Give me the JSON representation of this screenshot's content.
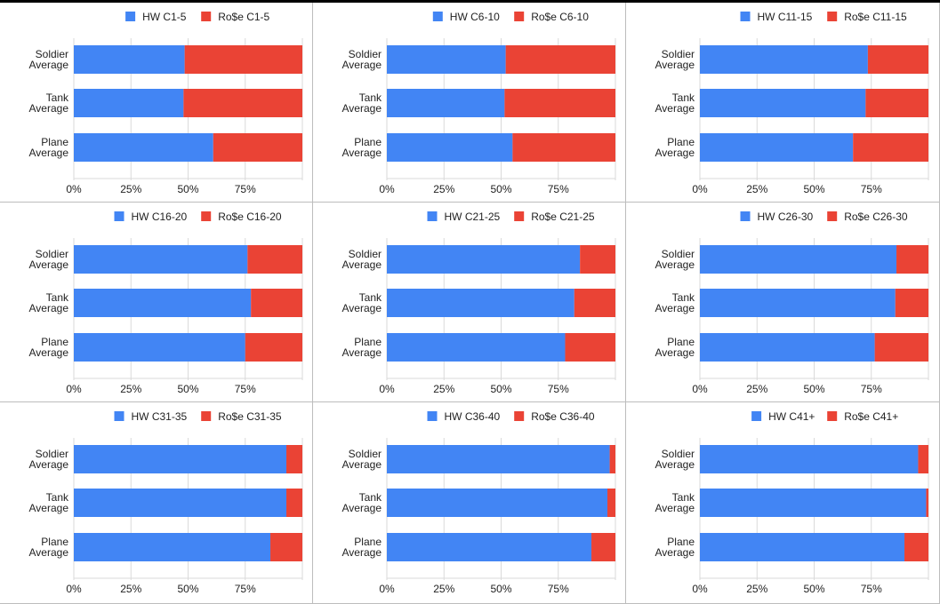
{
  "colors": {
    "hw": "#4285f4",
    "rose": "#ea4335",
    "grid": "#dadada",
    "axis": "#333333"
  },
  "category_lines": [
    [
      "Soldier",
      "Average"
    ],
    [
      "Tank",
      "Average"
    ],
    [
      "Plane",
      "Average"
    ]
  ],
  "chart_data": [
    {
      "type": "bar",
      "orientation": "horizontal",
      "stacked": "percent",
      "legend_position": "top",
      "categories": [
        "Soldier Average",
        "Tank Average",
        "Plane Average"
      ],
      "x_ticks": [
        "0%",
        "25%",
        "50%",
        "75%"
      ],
      "series": [
        {
          "name": "HW C1-5",
          "values": [
            48.5,
            48,
            61
          ]
        },
        {
          "name": "Ro$e C1-5",
          "values": [
            51.5,
            52,
            39
          ]
        }
      ]
    },
    {
      "type": "bar",
      "orientation": "horizontal",
      "stacked": "percent",
      "legend_position": "top",
      "categories": [
        "Soldier Average",
        "Tank Average",
        "Plane Average"
      ],
      "x_ticks": [
        "0%",
        "25%",
        "50%",
        "75%"
      ],
      "series": [
        {
          "name": "HW C6-10",
          "values": [
            52,
            51.5,
            55
          ]
        },
        {
          "name": "Ro$e C6-10",
          "values": [
            48,
            48.5,
            45
          ]
        }
      ]
    },
    {
      "type": "bar",
      "orientation": "horizontal",
      "stacked": "percent",
      "legend_position": "top",
      "categories": [
        "Soldier Average",
        "Tank Average",
        "Plane Average"
      ],
      "x_ticks": [
        "0%",
        "25%",
        "50%",
        "75%"
      ],
      "series": [
        {
          "name": "HW C11-15",
          "values": [
            73.5,
            72.5,
            67
          ]
        },
        {
          "name": "Ro$e C11-15",
          "values": [
            26.5,
            27.5,
            33
          ]
        }
      ]
    },
    {
      "type": "bar",
      "orientation": "horizontal",
      "stacked": "percent",
      "legend_position": "top",
      "categories": [
        "Soldier Average",
        "Tank Average",
        "Plane Average"
      ],
      "x_ticks": [
        "0%",
        "25%",
        "50%",
        "75%"
      ],
      "series": [
        {
          "name": "HW C16-20",
          "values": [
            76,
            77.5,
            75
          ]
        },
        {
          "name": "Ro$e C16-20",
          "values": [
            24,
            22.5,
            25
          ]
        }
      ]
    },
    {
      "type": "bar",
      "orientation": "horizontal",
      "stacked": "percent",
      "legend_position": "top",
      "categories": [
        "Soldier Average",
        "Tank Average",
        "Plane Average"
      ],
      "x_ticks": [
        "0%",
        "25%",
        "50%",
        "75%"
      ],
      "series": [
        {
          "name": "HW C21-25",
          "values": [
            84.5,
            82,
            78
          ]
        },
        {
          "name": "Ro$e C21-25",
          "values": [
            15.5,
            18,
            22
          ]
        }
      ]
    },
    {
      "type": "bar",
      "orientation": "horizontal",
      "stacked": "percent",
      "legend_position": "top",
      "categories": [
        "Soldier Average",
        "Tank Average",
        "Plane Average"
      ],
      "x_ticks": [
        "0%",
        "25%",
        "50%",
        "75%"
      ],
      "series": [
        {
          "name": "HW C26-30",
          "values": [
            86,
            85.5,
            76.5
          ]
        },
        {
          "name": "Ro$e C26-30",
          "values": [
            14,
            14.5,
            23.5
          ]
        }
      ]
    },
    {
      "type": "bar",
      "orientation": "horizontal",
      "stacked": "percent",
      "legend_position": "top",
      "categories": [
        "Soldier Average",
        "Tank Average",
        "Plane Average"
      ],
      "x_ticks": [
        "0%",
        "25%",
        "50%",
        "75%"
      ],
      "series": [
        {
          "name": "HW C31-35",
          "values": [
            93,
            93,
            86
          ]
        },
        {
          "name": "Ro$e C31-35",
          "values": [
            7,
            7,
            14
          ]
        }
      ]
    },
    {
      "type": "bar",
      "orientation": "horizontal",
      "stacked": "percent",
      "legend_position": "top",
      "categories": [
        "Soldier Average",
        "Tank Average",
        "Plane Average"
      ],
      "x_ticks": [
        "0%",
        "25%",
        "50%",
        "75%"
      ],
      "series": [
        {
          "name": "HW C36-40",
          "values": [
            97.5,
            96.5,
            89.5
          ]
        },
        {
          "name": "Ro$e C36-40",
          "values": [
            2.5,
            3.5,
            10.5
          ]
        }
      ]
    },
    {
      "type": "bar",
      "orientation": "horizontal",
      "stacked": "percent",
      "legend_position": "top",
      "categories": [
        "Soldier Average",
        "Tank Average",
        "Plane Average"
      ],
      "x_ticks": [
        "0%",
        "25%",
        "50%",
        "75%"
      ],
      "series": [
        {
          "name": "HW C41+",
          "values": [
            95.5,
            99,
            89.5
          ]
        },
        {
          "name": "Ro$e C41+",
          "values": [
            4.5,
            1,
            10.5
          ]
        }
      ]
    }
  ]
}
